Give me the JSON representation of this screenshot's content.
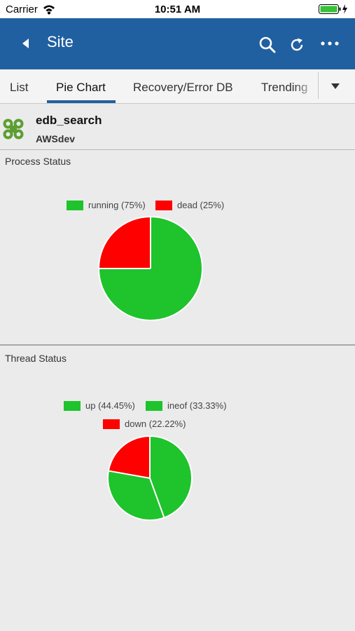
{
  "status_bar": {
    "carrier": "Carrier",
    "time": "10:51 AM"
  },
  "nav": {
    "title": "Site",
    "icons": [
      "back-arrow-icon",
      "search-icon",
      "refresh-icon",
      "more-icon"
    ],
    "color": "#2160a0"
  },
  "tabs": {
    "items": [
      {
        "label": "List",
        "active": false
      },
      {
        "label": "Pie Chart",
        "active": true
      },
      {
        "label": "Recovery/Error DB",
        "active": false
      },
      {
        "label": "Trending",
        "active": false
      }
    ]
  },
  "site": {
    "name": "edb_search",
    "environment": "AWSdev",
    "icon": "cluster-icon"
  },
  "colors": {
    "green": "#1fc32c",
    "red": "#ff0000"
  },
  "chart_data": [
    {
      "type": "pie",
      "title": "Process Status",
      "categories": [
        "running (75%)",
        "dead (25%)"
      ],
      "values": [
        75,
        25
      ],
      "colors": [
        "#1fc32c",
        "#ff0000"
      ]
    },
    {
      "type": "pie",
      "title": "Thread Status",
      "categories": [
        "up (44.45%)",
        "ineof (33.33%)",
        "down (22.22%)"
      ],
      "values": [
        44.45,
        33.33,
        22.22
      ],
      "colors": [
        "#1fc32c",
        "#1fc32c",
        "#ff0000"
      ]
    }
  ]
}
